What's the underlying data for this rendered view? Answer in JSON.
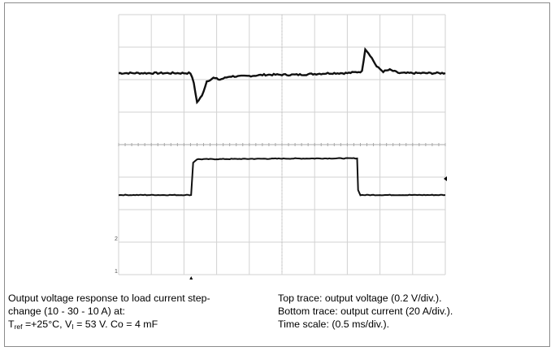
{
  "caption_left": {
    "line1": "Output voltage response to load current step-",
    "line2": "change (10 - 30 - 10 A) at:",
    "line3": {
      "t_sym": "T",
      "t_sub": "ref",
      "t_val": " =+25°C, V",
      "v_sub": "I",
      "rest": " = 53 V. Co = 4 mF"
    }
  },
  "caption_right": {
    "line1": "Top trace: output voltage (0.2 V/div.).",
    "line2": "Bottom trace: output current (20 A/div.).",
    "line3": "Time scale: (0.5 ms/div.)."
  },
  "chart_data": {
    "type": "line",
    "grid": true,
    "grid_divisions": {
      "x": 10,
      "y": 8
    },
    "x_unit": "div",
    "xlim": [
      0,
      10
    ],
    "y_unit": "div",
    "ylim": [
      0,
      8
    ],
    "series": [
      {
        "x": [
          0,
          2.2,
          2.3,
          2.4,
          2.55,
          2.7,
          2.9,
          3.1,
          3.4,
          3.8,
          4.5,
          5.5,
          6.5,
          7.0,
          7.45,
          7.55,
          7.7,
          7.9,
          8.1,
          8.3,
          8.6,
          9.0,
          10
        ],
        "y": [
          6.2,
          6.2,
          5.9,
          5.3,
          5.5,
          5.95,
          6.05,
          6.0,
          6.1,
          6.1,
          6.15,
          6.15,
          6.2,
          6.2,
          6.25,
          6.95,
          6.75,
          6.4,
          6.25,
          6.3,
          6.2,
          6.2,
          6.2
        ],
        "color": "#101010"
      },
      {
        "x": [
          0,
          2.22,
          2.28,
          2.4,
          5.0,
          7.3,
          7.33,
          7.4,
          10
        ],
        "y": [
          2.45,
          2.45,
          3.45,
          3.55,
          3.57,
          3.58,
          2.6,
          2.45,
          2.45
        ],
        "color": "#101010"
      }
    ],
    "markers": [
      "2",
      "1"
    ]
  }
}
